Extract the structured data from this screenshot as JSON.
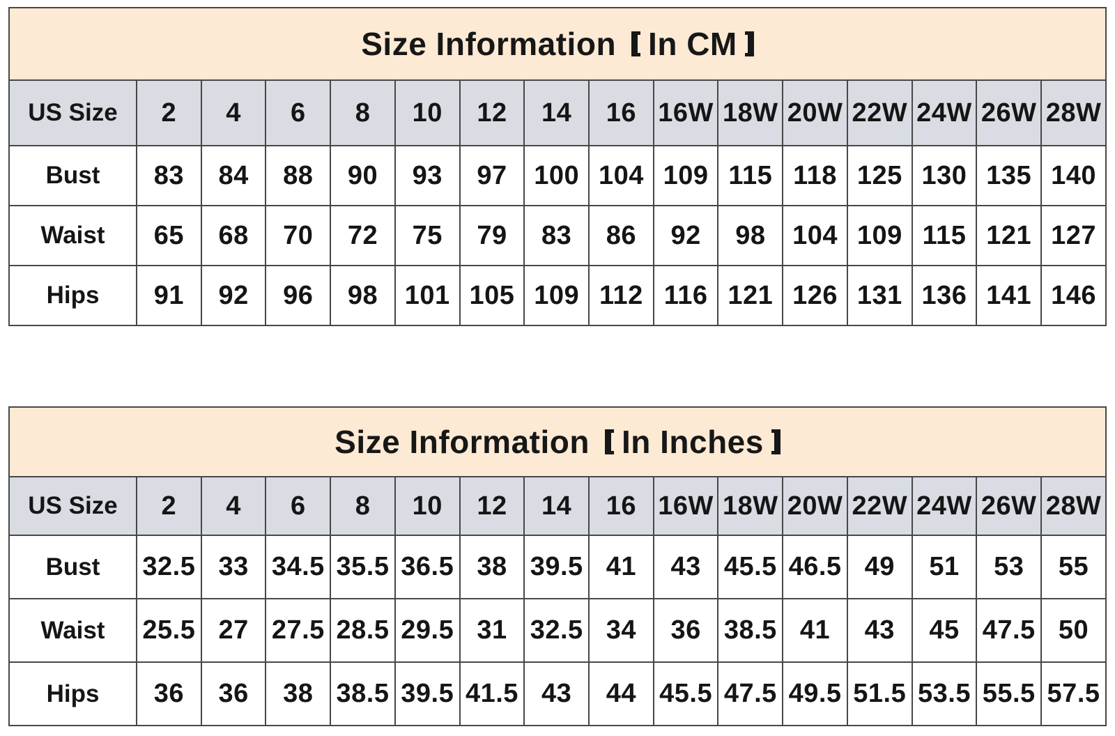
{
  "colors": {
    "title_band_bg": "#fcead5",
    "header_band_bg": "#d9dce3",
    "cell_bg": "#ffffff",
    "border": "#474747",
    "text": "#171717"
  },
  "chart_data": [
    {
      "type": "table",
      "title": "Size Information 【In CM】",
      "title_main": "Size Information",
      "title_bracket": "In CM",
      "columns": [
        "US Size",
        "2",
        "4",
        "6",
        "8",
        "10",
        "12",
        "14",
        "16",
        "16W",
        "18W",
        "20W",
        "22W",
        "24W",
        "26W",
        "28W"
      ],
      "rows": [
        {
          "label": "Bust",
          "values": [
            "83",
            "84",
            "88",
            "90",
            "93",
            "97",
            "100",
            "104",
            "109",
            "115",
            "118",
            "125",
            "130",
            "135",
            "140"
          ]
        },
        {
          "label": "Waist",
          "values": [
            "65",
            "68",
            "70",
            "72",
            "75",
            "79",
            "83",
            "86",
            "92",
            "98",
            "104",
            "109",
            "115",
            "121",
            "127"
          ]
        },
        {
          "label": "Hips",
          "values": [
            "91",
            "92",
            "96",
            "98",
            "101",
            "105",
            "109",
            "112",
            "116",
            "121",
            "126",
            "131",
            "136",
            "141",
            "146"
          ]
        }
      ]
    },
    {
      "type": "table",
      "title": "Size Information 【In Inches】",
      "title_main": "Size Information",
      "title_bracket": "In Inches",
      "columns": [
        "US Size",
        "2",
        "4",
        "6",
        "8",
        "10",
        "12",
        "14",
        "16",
        "16W",
        "18W",
        "20W",
        "22W",
        "24W",
        "26W",
        "28W"
      ],
      "rows": [
        {
          "label": "Bust",
          "values": [
            "32.5",
            "33",
            "34.5",
            "35.5",
            "36.5",
            "38",
            "39.5",
            "41",
            "43",
            "45.5",
            "46.5",
            "49",
            "51",
            "53",
            "55"
          ]
        },
        {
          "label": "Waist",
          "values": [
            "25.5",
            "27",
            "27.5",
            "28.5",
            "29.5",
            "31",
            "32.5",
            "34",
            "36",
            "38.5",
            "41",
            "43",
            "45",
            "47.5",
            "50"
          ]
        },
        {
          "label": "Hips",
          "values": [
            "36",
            "36",
            "38",
            "38.5",
            "39.5",
            "41.5",
            "43",
            "44",
            "45.5",
            "47.5",
            "49.5",
            "51.5",
            "53.5",
            "55.5",
            "57.5"
          ]
        }
      ]
    }
  ]
}
